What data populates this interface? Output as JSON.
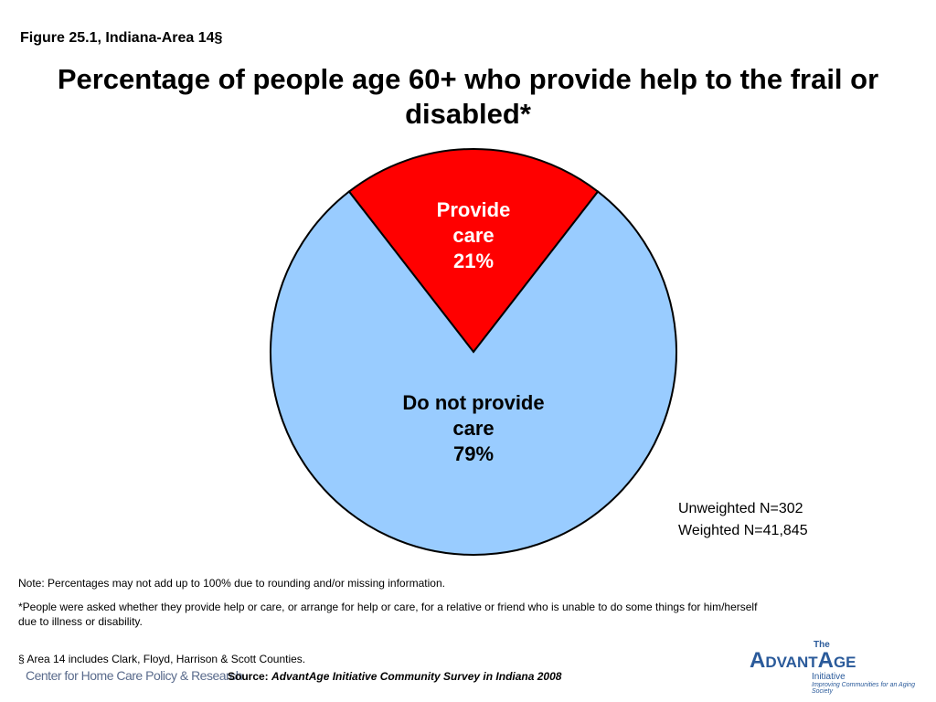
{
  "figure_label": "Figure 25.1, Indiana-Area 14§",
  "chart_data": {
    "type": "pie",
    "title": "Percentage of people age 60+ who provide help to the frail or disabled*",
    "categories": [
      "Provide care",
      "Do not provide care"
    ],
    "values": [
      21,
      79
    ],
    "value_labels": [
      "21%",
      "79%"
    ],
    "colors": [
      "#ff0000",
      "#99ccff"
    ],
    "annotations": [
      "Unweighted N=302",
      "Weighted N=41,845"
    ]
  },
  "notes": [
    "Note: Percentages may not add up to 100% due to rounding and/or missing information.",
    "*People were asked whether they provide help or care, or arrange for help or care, for a relative or friend who is unable to do some things for him/herself due to illness or disability.",
    "§ Area 14 includes Clark, Floyd, Harrison & Scott Counties."
  ],
  "source": {
    "label": "Source:",
    "text": "AdvantAge Initiative Community Survey in Indiana 2008"
  },
  "logos": {
    "left": "Center for Home Care Policy & Research",
    "right_small": "The",
    "right": "AdvantAge",
    "right_sub": "Initiative",
    "right_tagline": "Improving Communities for an Aging Society"
  }
}
